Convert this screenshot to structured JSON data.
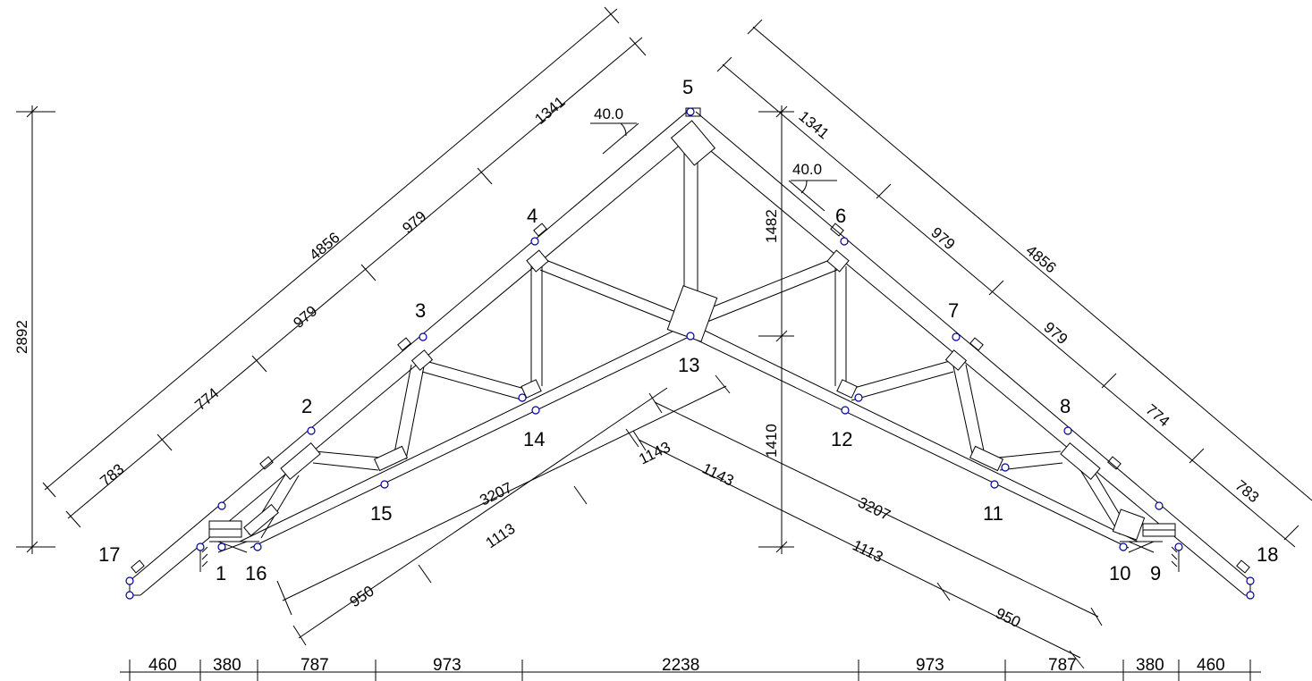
{
  "colors": {
    "lines": "#000000",
    "nodes": "#0000a0",
    "background": "#ffffff"
  },
  "node_labels": [
    "1",
    "2",
    "3",
    "4",
    "5",
    "6",
    "7",
    "8",
    "9",
    "10",
    "11",
    "12",
    "13",
    "14",
    "15",
    "16",
    "17",
    "18"
  ],
  "angles": {
    "left": "40.0",
    "right": "40.0"
  },
  "heights": {
    "total": "2892",
    "upper": "1482",
    "lower": "1410"
  },
  "top_chord_left": {
    "overall": "4856",
    "segments": [
      "783",
      "774",
      "979",
      "979",
      "1341"
    ]
  },
  "top_chord_right": {
    "overall": "4856",
    "segments": [
      "1341",
      "979",
      "979",
      "774",
      "783"
    ]
  },
  "bottom_chord_left": {
    "overall": "3207",
    "segments": [
      "950",
      "1113",
      "1143"
    ]
  },
  "bottom_chord_right": {
    "overall": "3207",
    "segments": [
      "1143",
      "1113",
      "950"
    ]
  },
  "bottom_dims": [
    "460",
    "380",
    "787",
    "973",
    "2238",
    "973",
    "787",
    "380",
    "460"
  ]
}
